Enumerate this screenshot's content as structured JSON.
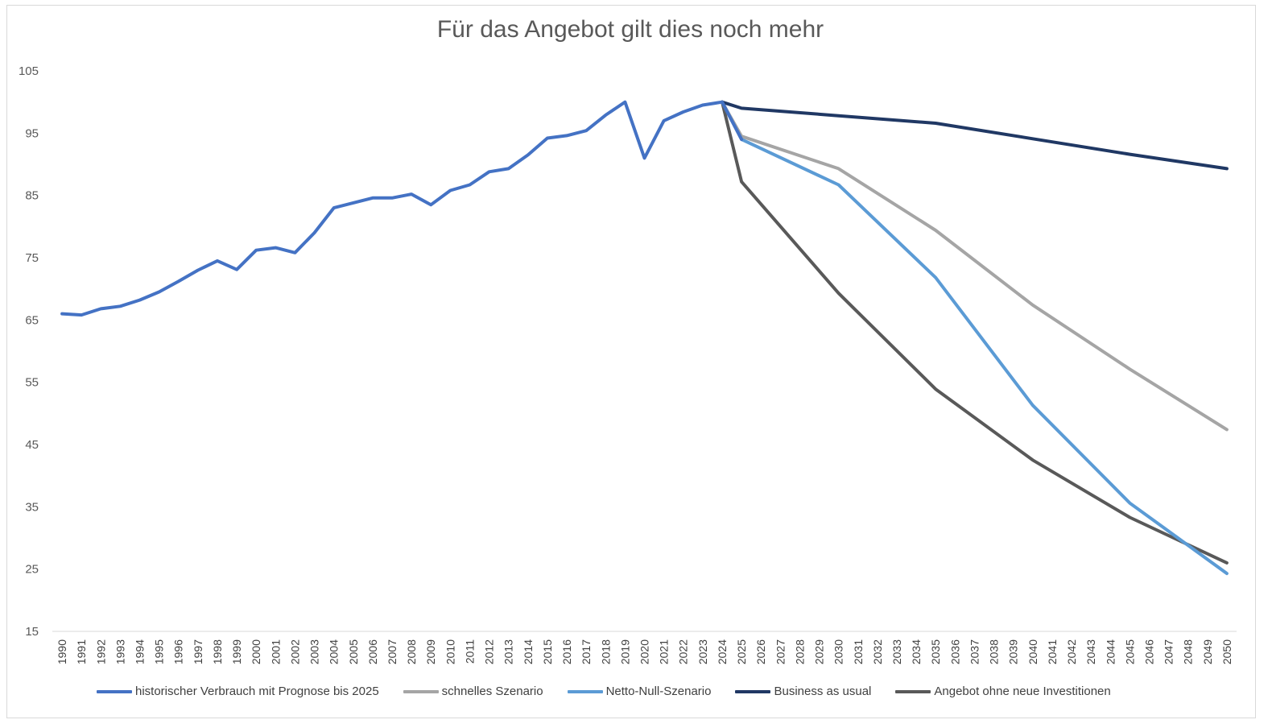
{
  "chart_data": {
    "type": "line",
    "title": "Für das Angebot gilt dies noch mehr",
    "ylim": [
      15,
      105
    ],
    "yticks": [
      15,
      25,
      35,
      45,
      55,
      65,
      75,
      85,
      95,
      105
    ],
    "x": [
      "1990",
      "1991",
      "1992",
      "1993",
      "1994",
      "1995",
      "1996",
      "1997",
      "1998",
      "1999",
      "2000",
      "2001",
      "2002",
      "2003",
      "2004",
      "2005",
      "2006",
      "2007",
      "2008",
      "2009",
      "2010",
      "2011",
      "2012",
      "2013",
      "2014",
      "2015",
      "2016",
      "2017",
      "2018",
      "2019",
      "2020",
      "2021",
      "2022",
      "2023",
      "2024",
      "2025",
      "2026",
      "2027",
      "2028",
      "2029",
      "2030",
      "2031",
      "2032",
      "2033",
      "2034",
      "2035",
      "2036",
      "2037",
      "2038",
      "2039",
      "2040",
      "2041",
      "2042",
      "2043",
      "2044",
      "2045",
      "2046",
      "2047",
      "2048",
      "2049",
      "2050"
    ],
    "legend_position": "bottom",
    "grid": false,
    "series": [
      {
        "name": "historischer Verbrauch mit Prognose bis 2025",
        "color": "#4472c4",
        "width": 4,
        "points": [
          [
            "1990",
            66.0
          ],
          [
            "1991",
            65.8
          ],
          [
            "1992",
            66.8
          ],
          [
            "1993",
            67.2
          ],
          [
            "1994",
            68.2
          ],
          [
            "1995",
            69.5
          ],
          [
            "1996",
            71.2
          ],
          [
            "1997",
            73.0
          ],
          [
            "1998",
            74.5
          ],
          [
            "1999",
            73.1
          ],
          [
            "2000",
            76.2
          ],
          [
            "2001",
            76.6
          ],
          [
            "2002",
            75.8
          ],
          [
            "2003",
            79.0
          ],
          [
            "2004",
            83.0
          ],
          [
            "2005",
            83.8
          ],
          [
            "2006",
            84.6
          ],
          [
            "2007",
            84.6
          ],
          [
            "2008",
            85.2
          ],
          [
            "2009",
            83.5
          ],
          [
            "2010",
            85.8
          ],
          [
            "2011",
            86.7
          ],
          [
            "2012",
            88.8
          ],
          [
            "2013",
            89.3
          ],
          [
            "2014",
            91.5
          ],
          [
            "2015",
            94.2
          ],
          [
            "2016",
            94.6
          ],
          [
            "2017",
            95.4
          ],
          [
            "2018",
            97.9
          ],
          [
            "2019",
            100.0
          ],
          [
            "2020",
            91.0
          ],
          [
            "2021",
            97.0
          ],
          [
            "2022",
            98.4
          ],
          [
            "2023",
            99.5
          ],
          [
            "2024",
            100.0
          ],
          [
            "2025",
            94.0
          ]
        ]
      },
      {
        "name": "schnelles Szenario",
        "color": "#a5a5a5",
        "width": 4,
        "points": [
          [
            "2024",
            100.0
          ],
          [
            "2025",
            94.5
          ],
          [
            "2030",
            89.3
          ],
          [
            "2035",
            79.4
          ],
          [
            "2040",
            67.4
          ],
          [
            "2045",
            57.1
          ],
          [
            "2050",
            47.4
          ]
        ]
      },
      {
        "name": "Netto-Null-Szenario",
        "color": "#5b9bd5",
        "width": 4,
        "points": [
          [
            "2024",
            100.0
          ],
          [
            "2025",
            94.0
          ],
          [
            "2030",
            86.7
          ],
          [
            "2035",
            71.8
          ],
          [
            "2040",
            51.3
          ],
          [
            "2045",
            35.6
          ],
          [
            "2050",
            24.3
          ]
        ]
      },
      {
        "name": "Business as usual",
        "color": "#203864",
        "width": 4,
        "points": [
          [
            "2024",
            100.0
          ],
          [
            "2025",
            99.0
          ],
          [
            "2030",
            97.8
          ],
          [
            "2035",
            96.6
          ],
          [
            "2040",
            94.1
          ],
          [
            "2045",
            91.6
          ],
          [
            "2050",
            89.3
          ]
        ]
      },
      {
        "name": "Angebot ohne neue Investitionen",
        "color": "#595959",
        "width": 4,
        "points": [
          [
            "2024",
            100.0
          ],
          [
            "2025",
            87.2
          ],
          [
            "2030",
            69.3
          ],
          [
            "2035",
            53.9
          ],
          [
            "2040",
            42.5
          ],
          [
            "2045",
            33.3
          ],
          [
            "2050",
            26.0
          ]
        ]
      }
    ]
  }
}
